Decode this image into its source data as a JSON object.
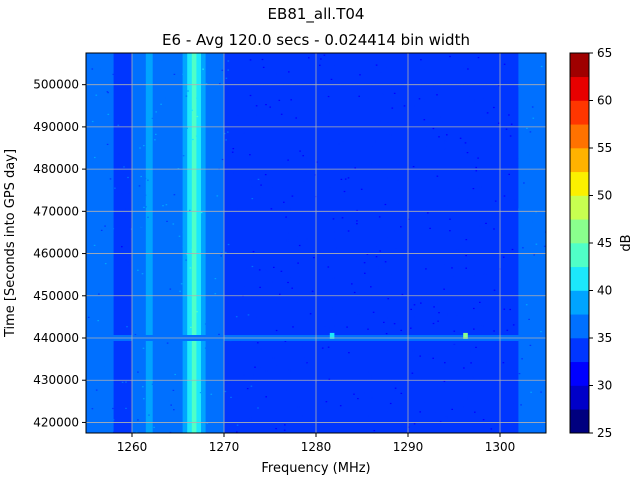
{
  "chart_data": {
    "type": "heatmap",
    "title": "EB81_all.T04",
    "subtitle": "E6 - Avg 120.0 secs - 0.024414 bin width",
    "xlabel": "Frequency (MHz)",
    "ylabel": "Time [Seconds into GPS day]",
    "xlim": [
      1255,
      1305
    ],
    "ylim": [
      417500,
      507500
    ],
    "x_ticks": [
      1260,
      1270,
      1280,
      1290,
      1300
    ],
    "y_ticks": [
      420000,
      430000,
      440000,
      450000,
      460000,
      470000,
      480000,
      490000,
      500000
    ],
    "grid": true,
    "colorbar": {
      "label": "dB",
      "min": 25,
      "max": 65,
      "ticks": [
        25,
        30,
        35,
        40,
        45,
        50,
        55,
        60,
        65
      ],
      "levels": [
        25,
        27.5,
        30,
        32.5,
        35,
        37.5,
        40,
        42.5,
        45,
        47.5,
        50,
        52.5,
        55,
        57.5,
        60,
        62.5,
        65
      ]
    },
    "spectrum_profile": {
      "frequency_mhz": [
        1255,
        1257.8,
        1258.2,
        1260,
        1261,
        1262,
        1263,
        1264,
        1265,
        1265.8,
        1266.3,
        1266.9,
        1267.3,
        1268,
        1269,
        1270,
        1271,
        1275,
        1280,
        1283,
        1290,
        1295,
        1300,
        1301.5,
        1302,
        1303,
        1304,
        1305
      ],
      "level_db": [
        36,
        36,
        34,
        35,
        37,
        38,
        36,
        35.5,
        36.5,
        38,
        42,
        44,
        41,
        37,
        36,
        35,
        33.5,
        33,
        33,
        33,
        33,
        33,
        33,
        33,
        35,
        36,
        36,
        36
      ]
    },
    "time_events": [
      {
        "time": 440000,
        "frequency_range_mhz": [
          1256,
          1305
        ],
        "level_db": 35
      },
      {
        "time": 440500,
        "frequency_range_mhz": [
          1281.5,
          1282
        ],
        "level_db": 40
      },
      {
        "time": 440500,
        "frequency_range_mhz": [
          1296,
          1296.5
        ],
        "level_db": 46
      }
    ]
  }
}
